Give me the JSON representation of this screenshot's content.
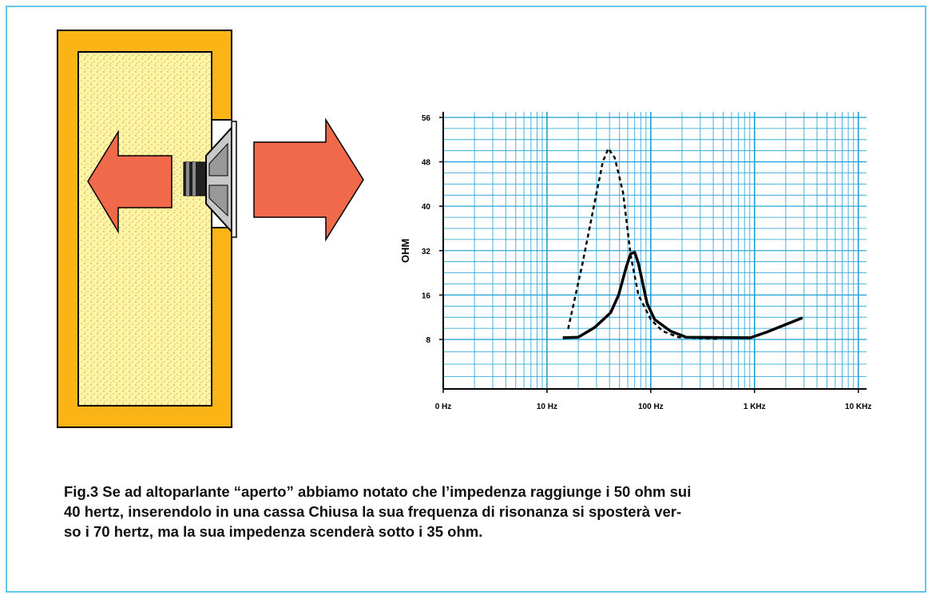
{
  "chart_data": {
    "type": "line",
    "y_label": "OHM",
    "log_x": true,
    "xlim": [
      1,
      12000
    ],
    "xticks": [
      {
        "value": 1,
        "label": "0 Hz"
      },
      {
        "value": 10,
        "label": "10 Hz"
      },
      {
        "value": 100,
        "label": "100 Hz"
      },
      {
        "value": 1000,
        "label": "1 KHz"
      },
      {
        "value": 10000,
        "label": "10 KHz"
      }
    ],
    "ylim": [
      0,
      56
    ],
    "yticks": [
      8,
      16,
      32,
      40,
      48,
      56
    ],
    "grid": true,
    "grid_color": "#1a9fd6",
    "series": [
      {
        "color": "#000000",
        "dashed": true,
        "x": [
          16,
          22,
          29,
          34.5,
          39,
          45,
          54,
          64,
          76,
          100,
          130,
          185,
          450
        ],
        "values": [
          9.9,
          27.4,
          41,
          48,
          50.4,
          48.7,
          42.5,
          30.3,
          16,
          11.6,
          9.5,
          8.4,
          8.1
        ]
      },
      {
        "color": "#000000",
        "dashed": false,
        "x": [
          14.2,
          20,
          29,
          41,
          49,
          58,
          64,
          70,
          76,
          92,
          109,
          155,
          220,
          910,
          1300,
          2900
        ],
        "values": [
          8.3,
          8.4,
          10.2,
          12.8,
          16,
          26,
          30.9,
          31.4,
          27.4,
          14.5,
          11.6,
          9.5,
          8.4,
          8.3,
          9.3,
          11.9
        ]
      }
    ]
  },
  "caption": [
    "Fig.3 Se ad altoparlante “aperto” abbiamo notato che l’impedenza raggiunge i 50 ohm sui",
    "40 hertz, inserendolo in una cassa Chiusa la sua frequenza di risonanza si sposterà ver-",
    "so i 70 hertz, ma la sua impedenza scenderà sotto i 35 ohm."
  ]
}
